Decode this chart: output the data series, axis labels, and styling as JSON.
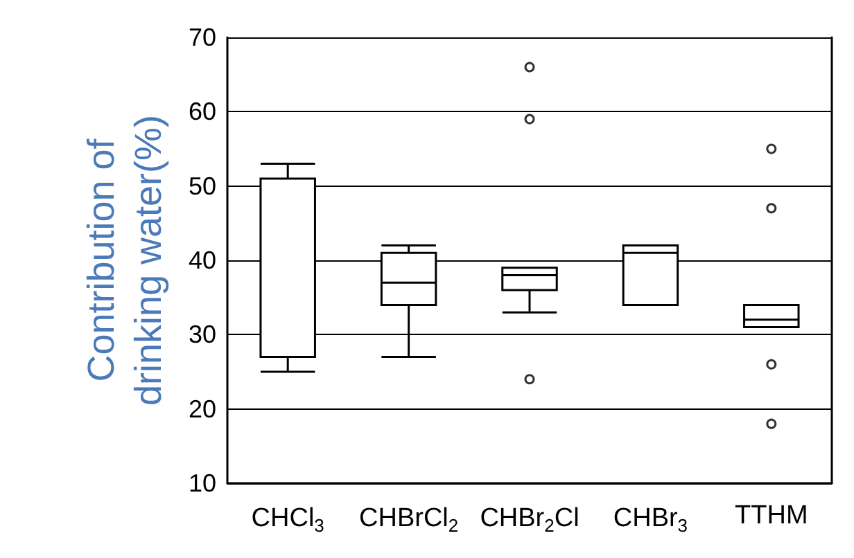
{
  "chart_data": {
    "type": "box",
    "ylabel": "Contribution of\ndrinking water(%)",
    "categories": [
      "CHCl$_{3}$",
      "CHBrCl$_{2}$",
      "CHBr$_{2}$Cl",
      "CHBr$_{3}$",
      "TTHM"
    ],
    "series": [
      {
        "color": "#000000",
        "boxes": [
          {
            "low": 25,
            "q1": 27,
            "median": 27,
            "q3": 51,
            "high": 53
          },
          {
            "low": 27,
            "q1": 34,
            "median": 37,
            "q3": 41,
            "high": 42
          },
          {
            "low": 33,
            "q1": 36,
            "median": 38,
            "q3": 39,
            "high": 39
          },
          {
            "low": 34,
            "q1": 34,
            "median": 41,
            "q3": 42,
            "high": 42
          },
          {
            "low": 31,
            "q1": 31,
            "median": 32,
            "q3": 34,
            "high": 34
          }
        ]
      },
      {
        "type": "scatter",
        "color": "#000000",
        "marker": "circle",
        "x": [
          "CHBr$_{2}$Cl",
          "CHBr$_{2}$Cl",
          "CHBr$_{2}$Cl",
          "TTHM",
          "TTHM",
          "TTHM",
          "TTHM"
        ],
        "values": [
          66,
          59,
          24,
          55,
          47,
          26,
          18
        ]
      }
    ],
    "ylim": [
      10,
      70
    ],
    "yticks": [
      10,
      20,
      30,
      40,
      50,
      60,
      70
    ],
    "grid": "y"
  }
}
